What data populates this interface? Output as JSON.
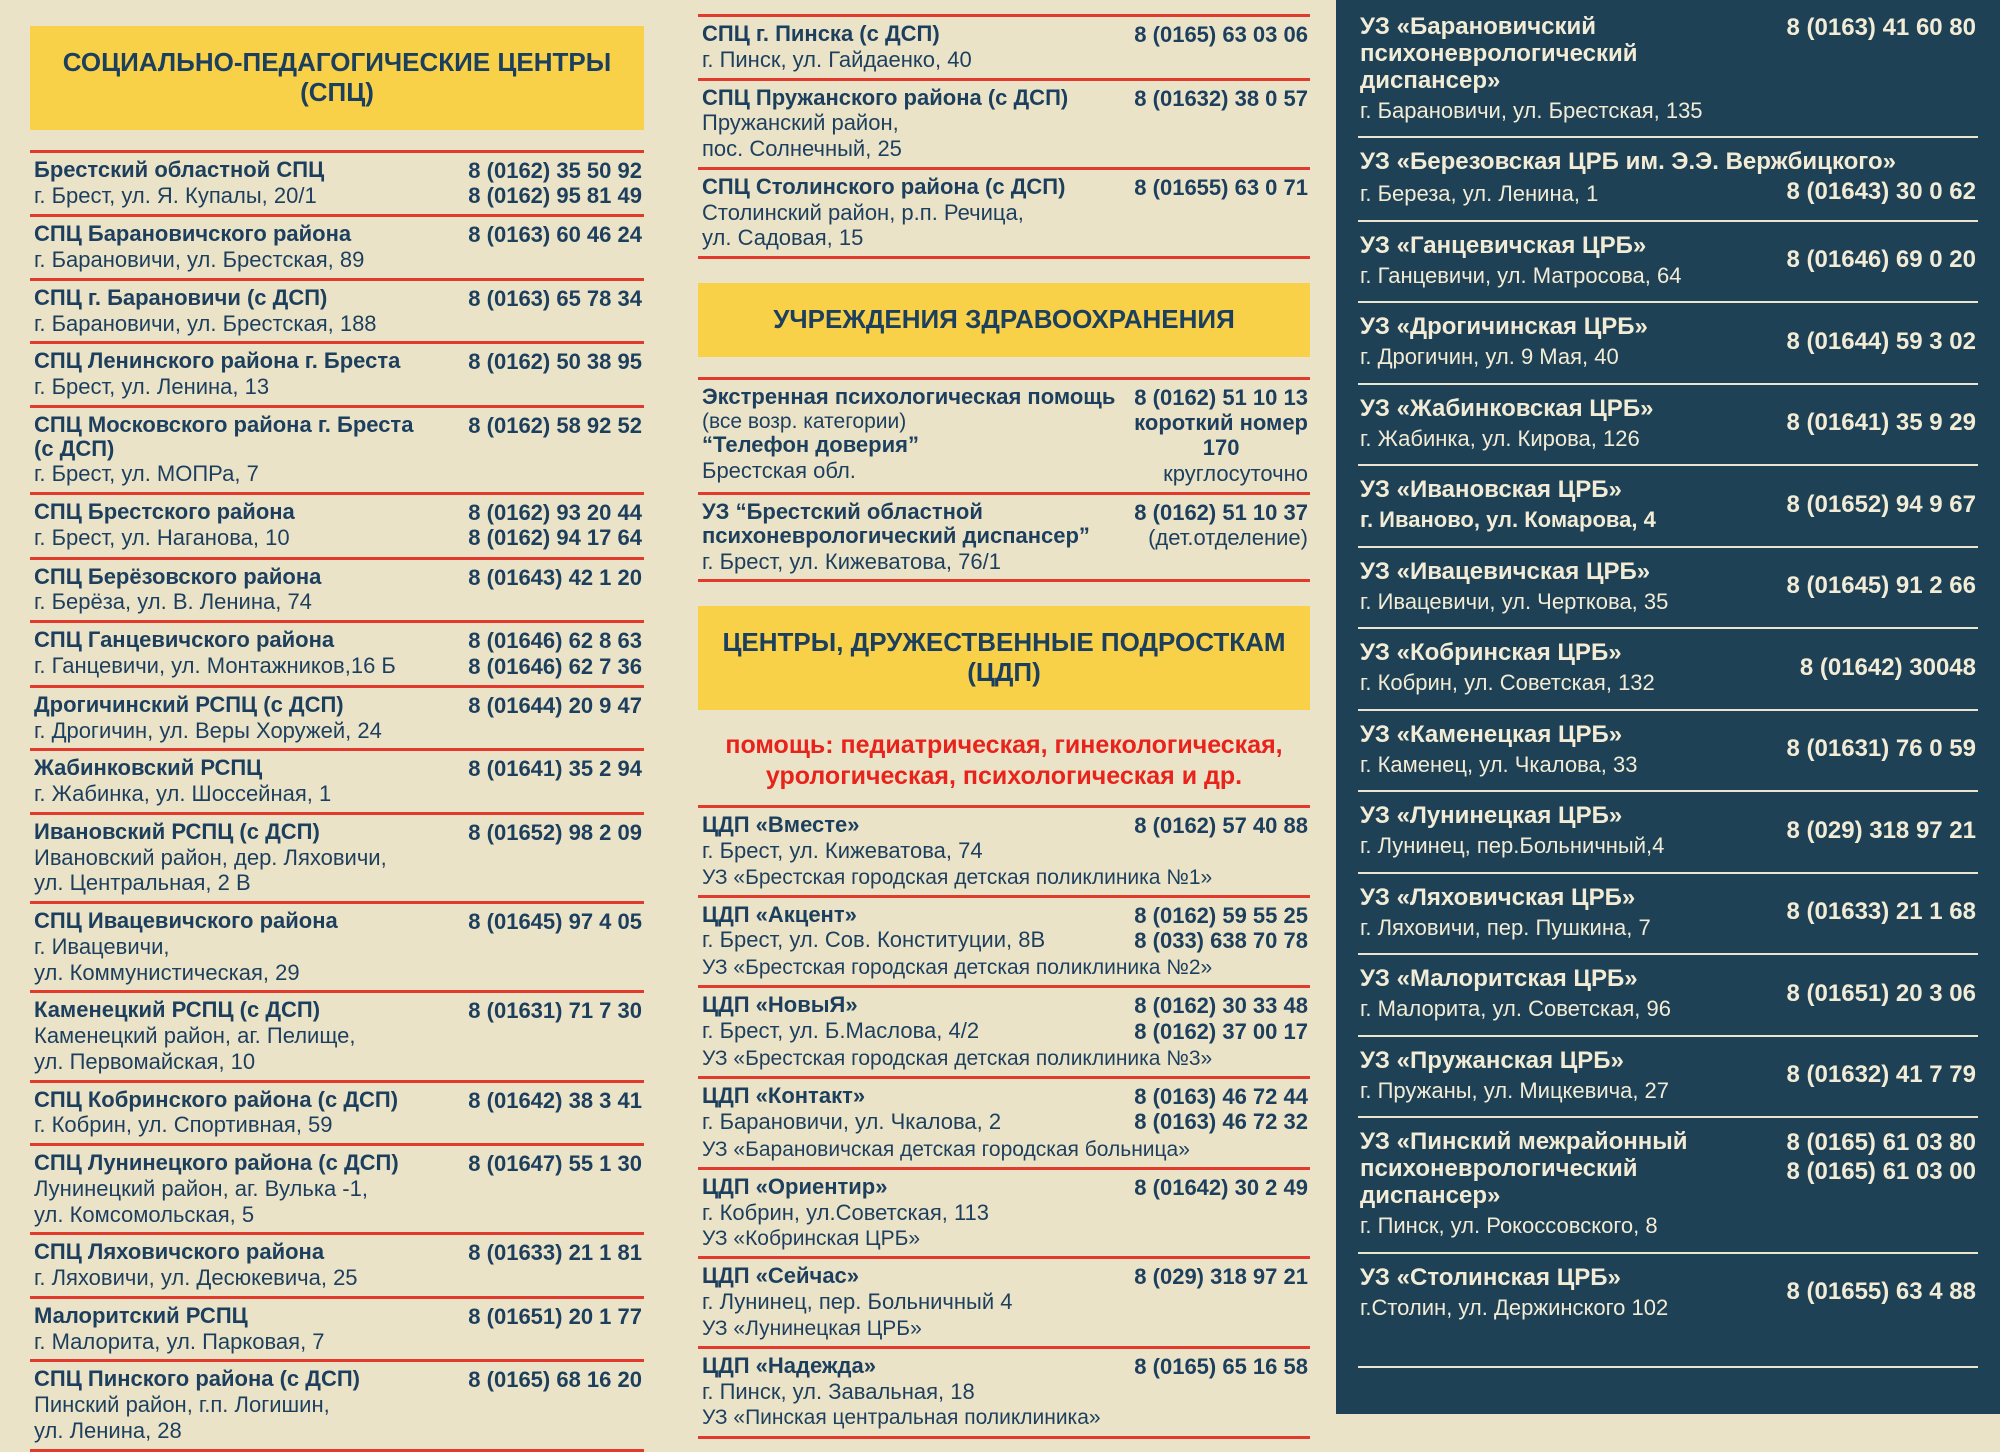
{
  "colors": {
    "background": "#ebe3c8",
    "header_yellow": "#f8d148",
    "divider_red": "#e23b2e",
    "text_navy": "#1d3f5e",
    "note_red": "#e8231c",
    "panel_navy": "#1e4156",
    "panel_text": "#f2ecd6"
  },
  "left": {
    "header": "СОЦИАЛЬНО-ПЕДАГОГИЧЕСКИЕ ЦЕНТРЫ (СПЦ)",
    "entries": [
      {
        "name": "Брестский областной СПЦ",
        "address": [
          "г. Брест, ул. Я. Купалы, 20/1"
        ],
        "phones": [
          "8 (0162) 35 50 92",
          "8 (0162) 95 81 49"
        ]
      },
      {
        "name": "СПЦ Барановичского района",
        "address": [
          "г. Барановичи, ул. Брестская, 89"
        ],
        "phones": [
          "8 (0163) 60 46 24"
        ]
      },
      {
        "name": "СПЦ г. Барановичи (с ДСП)",
        "address": [
          "г. Барановичи, ул. Брестская, 188"
        ],
        "phones": [
          "8 (0163) 65 78 34"
        ]
      },
      {
        "name": "СПЦ Ленинского района г. Бреста",
        "address": [
          "г. Брест, ул. Ленина, 13"
        ],
        "phones": [
          "8 (0162) 50 38 95"
        ]
      },
      {
        "name": "СПЦ Московского района г. Бреста\n(с ДСП)",
        "address": [
          "г. Брест, ул. МОПРа, 7"
        ],
        "phones": [
          "8 (0162) 58 92 52"
        ]
      },
      {
        "name": "СПЦ Брестского района",
        "address": [
          "г. Брест, ул. Наганова, 10"
        ],
        "phones": [
          "8 (0162) 93 20 44",
          "8 (0162) 94 17 64"
        ]
      },
      {
        "name": "СПЦ Берёзовского района",
        "address": [
          "г. Берёза, ул. В. Ленина, 74"
        ],
        "phones": [
          "8 (01643) 42 1 20"
        ]
      },
      {
        "name": "СПЦ Ганцевичского района",
        "address": [
          "г. Ганцевичи, ул. Монтажников,16 Б"
        ],
        "phones": [
          "8 (01646) 62 8 63",
          "8 (01646) 62 7 36"
        ]
      },
      {
        "name": "Дрогичинский РСПЦ (с ДСП)",
        "address": [
          "г. Дрогичин, ул. Веры Хоружей, 24"
        ],
        "phones": [
          "8 (01644) 20 9 47"
        ]
      },
      {
        "name": "Жабинковский РСПЦ",
        "address": [
          "г. Жабинка, ул. Шоссейная, 1"
        ],
        "phones": [
          "8 (01641) 35 2 94"
        ]
      },
      {
        "name": "Ивановский РСПЦ (с ДСП)",
        "address": [
          "Ивановский район, дер. Ляховичи,",
          "ул. Центральная, 2 В"
        ],
        "phones": [
          "8 (01652) 98 2 09"
        ]
      },
      {
        "name": "СПЦ Ивацевичского района",
        "address": [
          "г. Ивацевичи,",
          "ул. Коммунистическая, 29"
        ],
        "phones": [
          "8 (01645) 97 4 05"
        ]
      },
      {
        "name": "Каменецкий РСПЦ (с ДСП)",
        "address": [
          "Каменецкий район, аг. Пелище,",
          "ул. Первомайская, 10"
        ],
        "phones": [
          "8 (01631) 71 7 30"
        ]
      },
      {
        "name": "СПЦ Кобринского района (с ДСП)",
        "address": [
          "г. Кобрин, ул. Спортивная, 59"
        ],
        "phones": [
          "8 (01642) 38 3 41"
        ]
      },
      {
        "name": "СПЦ Лунинецкого района (с ДСП)",
        "address": [
          "Лунинецкий район, аг. Вулька -1,",
          "ул. Комсомольская, 5"
        ],
        "phones": [
          "8 (01647) 55 1 30"
        ]
      },
      {
        "name": "СПЦ Ляховичского района",
        "address": [
          "г. Ляховичи, ул. Десюкевича, 25"
        ],
        "phones": [
          "8 (01633) 21 1 81"
        ]
      },
      {
        "name": "Малоритский РСПЦ",
        "address": [
          "г. Малорита, ул. Парковая, 7"
        ],
        "phones": [
          "8 (01651) 20 1 77"
        ]
      },
      {
        "name": "СПЦ Пинского района (с ДСП)",
        "address": [
          "Пинский район, г.п. Логишин,",
          "ул. Ленина, 28"
        ],
        "phones": [
          "8 (0165) 68 16 20"
        ]
      }
    ]
  },
  "mid": {
    "spc_entries": [
      {
        "name": "СПЦ г. Пинска (с ДСП)",
        "address": [
          "г. Пинск, ул. Гайдаенко, 40"
        ],
        "phones": [
          "8 (0165) 63 03 06"
        ]
      },
      {
        "name": "СПЦ Пружанского района (с ДСП)",
        "address": [
          "Пружанский район,",
          "пос. Солнечный, 25"
        ],
        "phones": [
          "8 (01632) 38 0 57"
        ]
      },
      {
        "name": "СПЦ Столинского района (с ДСП)",
        "address": [
          "Столинский район, р.п. Речица,",
          "ул. Садовая, 15"
        ],
        "phones": [
          "8 (01655) 63 0 71"
        ]
      }
    ],
    "health_header": "УЧРЕЖДЕНИЯ ЗДРАВООХРАНЕНИЯ",
    "health_entries": [
      {
        "name_parts": [
          {
            "text": "Экстренная психологическая помощь ",
            "bold": true
          },
          {
            "text": " (все возр. категории)",
            "bold": false
          }
        ],
        "name2": "“Телефон доверия”",
        "address": [
          "Брестская обл."
        ],
        "phones": [
          {
            "text": "8 (0162) 51 10 13",
            "bold": true
          },
          {
            "text": "короткий номер",
            "bold": true
          },
          {
            "text": "170",
            "bold": true,
            "center": true
          },
          {
            "text": "круглосуточно",
            "bold": false
          }
        ]
      },
      {
        "name_parts": [
          {
            "text": "УЗ “Брестский областной психоневрологический диспансер”",
            "bold": true
          }
        ],
        "address": [
          "г. Брест, ул. Кижеватова, 76/1"
        ],
        "phones": [
          {
            "text": "8 (0162) 51 10 37",
            "bold": true
          },
          {
            "text": "(дет.отделение)",
            "bold": false
          }
        ]
      }
    ],
    "cdp_header": "ЦЕНТРЫ, ДРУЖЕСТВЕННЫЕ ПОДРОСТКАМ (ЦДП)",
    "cdp_note": "помощь: педиатрическая, гинекологическая,\nурологическая, психологическая и др.",
    "cdp_entries": [
      {
        "name": "ЦДП «Вместе»",
        "address": [
          "г. Брест, ул. Кижеватова, 74"
        ],
        "uz": "УЗ «Брестская городская детская поликлиника №1»",
        "phones": [
          "8 (0162) 57 40 88"
        ]
      },
      {
        "name": "ЦДП «Акцент»",
        "address": [
          "г. Брест, ул. Сов. Конституции, 8В"
        ],
        "uz": "УЗ «Брестская городская детская поликлиника №2»",
        "phones": [
          "8 (0162) 59 55 25",
          "8 (033) 638 70 78"
        ]
      },
      {
        "name": "ЦДП «НовыЯ»",
        "address": [
          "г. Брест, ул. Б.Маслова, 4/2"
        ],
        "uz": "УЗ «Брестская городская детская поликлиника №3»",
        "phones": [
          "8 (0162) 30 33 48",
          "8 (0162) 37 00 17"
        ]
      },
      {
        "name": "ЦДП «Контакт»",
        "address": [
          "г. Барановичи, ул. Чкалова, 2"
        ],
        "uz": "УЗ «Барановичская детская городская больница»",
        "phones": [
          "8 (0163) 46 72 44",
          "8 (0163) 46 72 32"
        ]
      },
      {
        "name": "ЦДП «Ориентир»",
        "address": [
          "г. Кобрин, ул.Советская, 113"
        ],
        "uz": "УЗ «Кобринская ЦРБ»",
        "phones": [
          "8 (01642) 30 2 49"
        ]
      },
      {
        "name": "ЦДП «Сейчас»",
        "address": [
          "г. Лунинец, пер. Больничный 4"
        ],
        "uz": "УЗ «Лунинецкая ЦРБ»",
        "phones": [
          "8 (029) 318 97 21"
        ]
      },
      {
        "name": "ЦДП «Надежда»",
        "address": [
          "г. Пинск, ул. Завальная, 18"
        ],
        "uz": "УЗ «Пинская центральная поликлиника»",
        "phones": [
          "8 (0165) 65 16 58"
        ]
      }
    ]
  },
  "right": {
    "entries": [
      {
        "name": "УЗ «Барановичский\nпсихоневрологический\nдиспансер»",
        "address": [
          "г. Барановичи, ул. Брестская, 135"
        ],
        "phones": [
          "8 (0163) 41 60 80"
        ]
      },
      {
        "name": "УЗ «Березовская ЦРБ им. Э.Э. Вержбицкого»",
        "title_full": true,
        "address": [
          "г. Береза, ул. Ленина, 1"
        ],
        "phones": [
          "8 (01643) 30 0 62"
        ]
      },
      {
        "name": "УЗ «Ганцевичская ЦРБ»",
        "address": [
          "г. Ганцевичи, ул. Матросова, 64"
        ],
        "phones": [
          "8 (01646) 69 0 20"
        ]
      },
      {
        "name": "УЗ «Дрогичинская ЦРБ»",
        "address": [
          "г. Дрогичин, ул. 9 Мая, 40"
        ],
        "phones": [
          "8 (01644) 59 3 02"
        ]
      },
      {
        "name": "УЗ «Жабинковская ЦРБ»",
        "address": [
          "г. Жабинка, ул. Кирова, 126"
        ],
        "phones": [
          "8 (01641) 35 9 29"
        ]
      },
      {
        "name": "УЗ «Ивановская ЦРБ»",
        "bold_address": true,
        "address": [
          "г. Иваново, ул. Комарова, 4"
        ],
        "phones": [
          "8 (01652) 94 9 67"
        ]
      },
      {
        "name": "УЗ «Ивацевичская ЦРБ»",
        "address": [
          "г. Ивацевичи, ул. Черткова, 35"
        ],
        "phones": [
          "8 (01645) 91 2 66"
        ]
      },
      {
        "name": "УЗ «Кобринская ЦРБ»",
        "address": [
          "г. Кобрин, ул. Советская, 132"
        ],
        "phones": [
          "8 (01642) 30048"
        ]
      },
      {
        "name": "УЗ «Каменецкая ЦРБ»",
        "address": [
          "г. Каменец, ул. Чкалова, 33"
        ],
        "phones": [
          "8 (01631) 76 0 59"
        ]
      },
      {
        "name": "УЗ «Лунинецкая ЦРБ»",
        "address": [
          "г. Лунинец, пер.Больничный,4"
        ],
        "phones": [
          "8 (029) 318 97 21"
        ]
      },
      {
        "name": "УЗ «Ляховичская ЦРБ»",
        "address": [
          "г. Ляховичи, пер. Пушкина, 7"
        ],
        "phones": [
          "8 (01633) 21 1 68"
        ]
      },
      {
        "name": "УЗ «Малоритская ЦРБ»",
        "address": [
          "г. Малорита, ул. Советская, 96"
        ],
        "phones": [
          "8 (01651) 20 3 06"
        ]
      },
      {
        "name": "УЗ «Пружанская ЦРБ»",
        "address": [
          "г. Пружаны, ул. Мицкевича, 27"
        ],
        "phones": [
          "8 (01632) 41 7 79"
        ]
      },
      {
        "name": "УЗ «Пинский межрайонный\nпсихоневрологический\nдиспансер»",
        "address": [
          "г. Пинск, ул. Рокоссовского, 8"
        ],
        "phones": [
          "8 (0165) 61 03 80",
          "8 (0165) 61 03 00"
        ]
      },
      {
        "name": "УЗ «Столинская ЦРБ»",
        "extra_bottom": true,
        "address": [
          "г.Столин, ул. Держинского 102"
        ],
        "phones": [
          "8 (01655) 63 4 88"
        ]
      }
    ]
  }
}
